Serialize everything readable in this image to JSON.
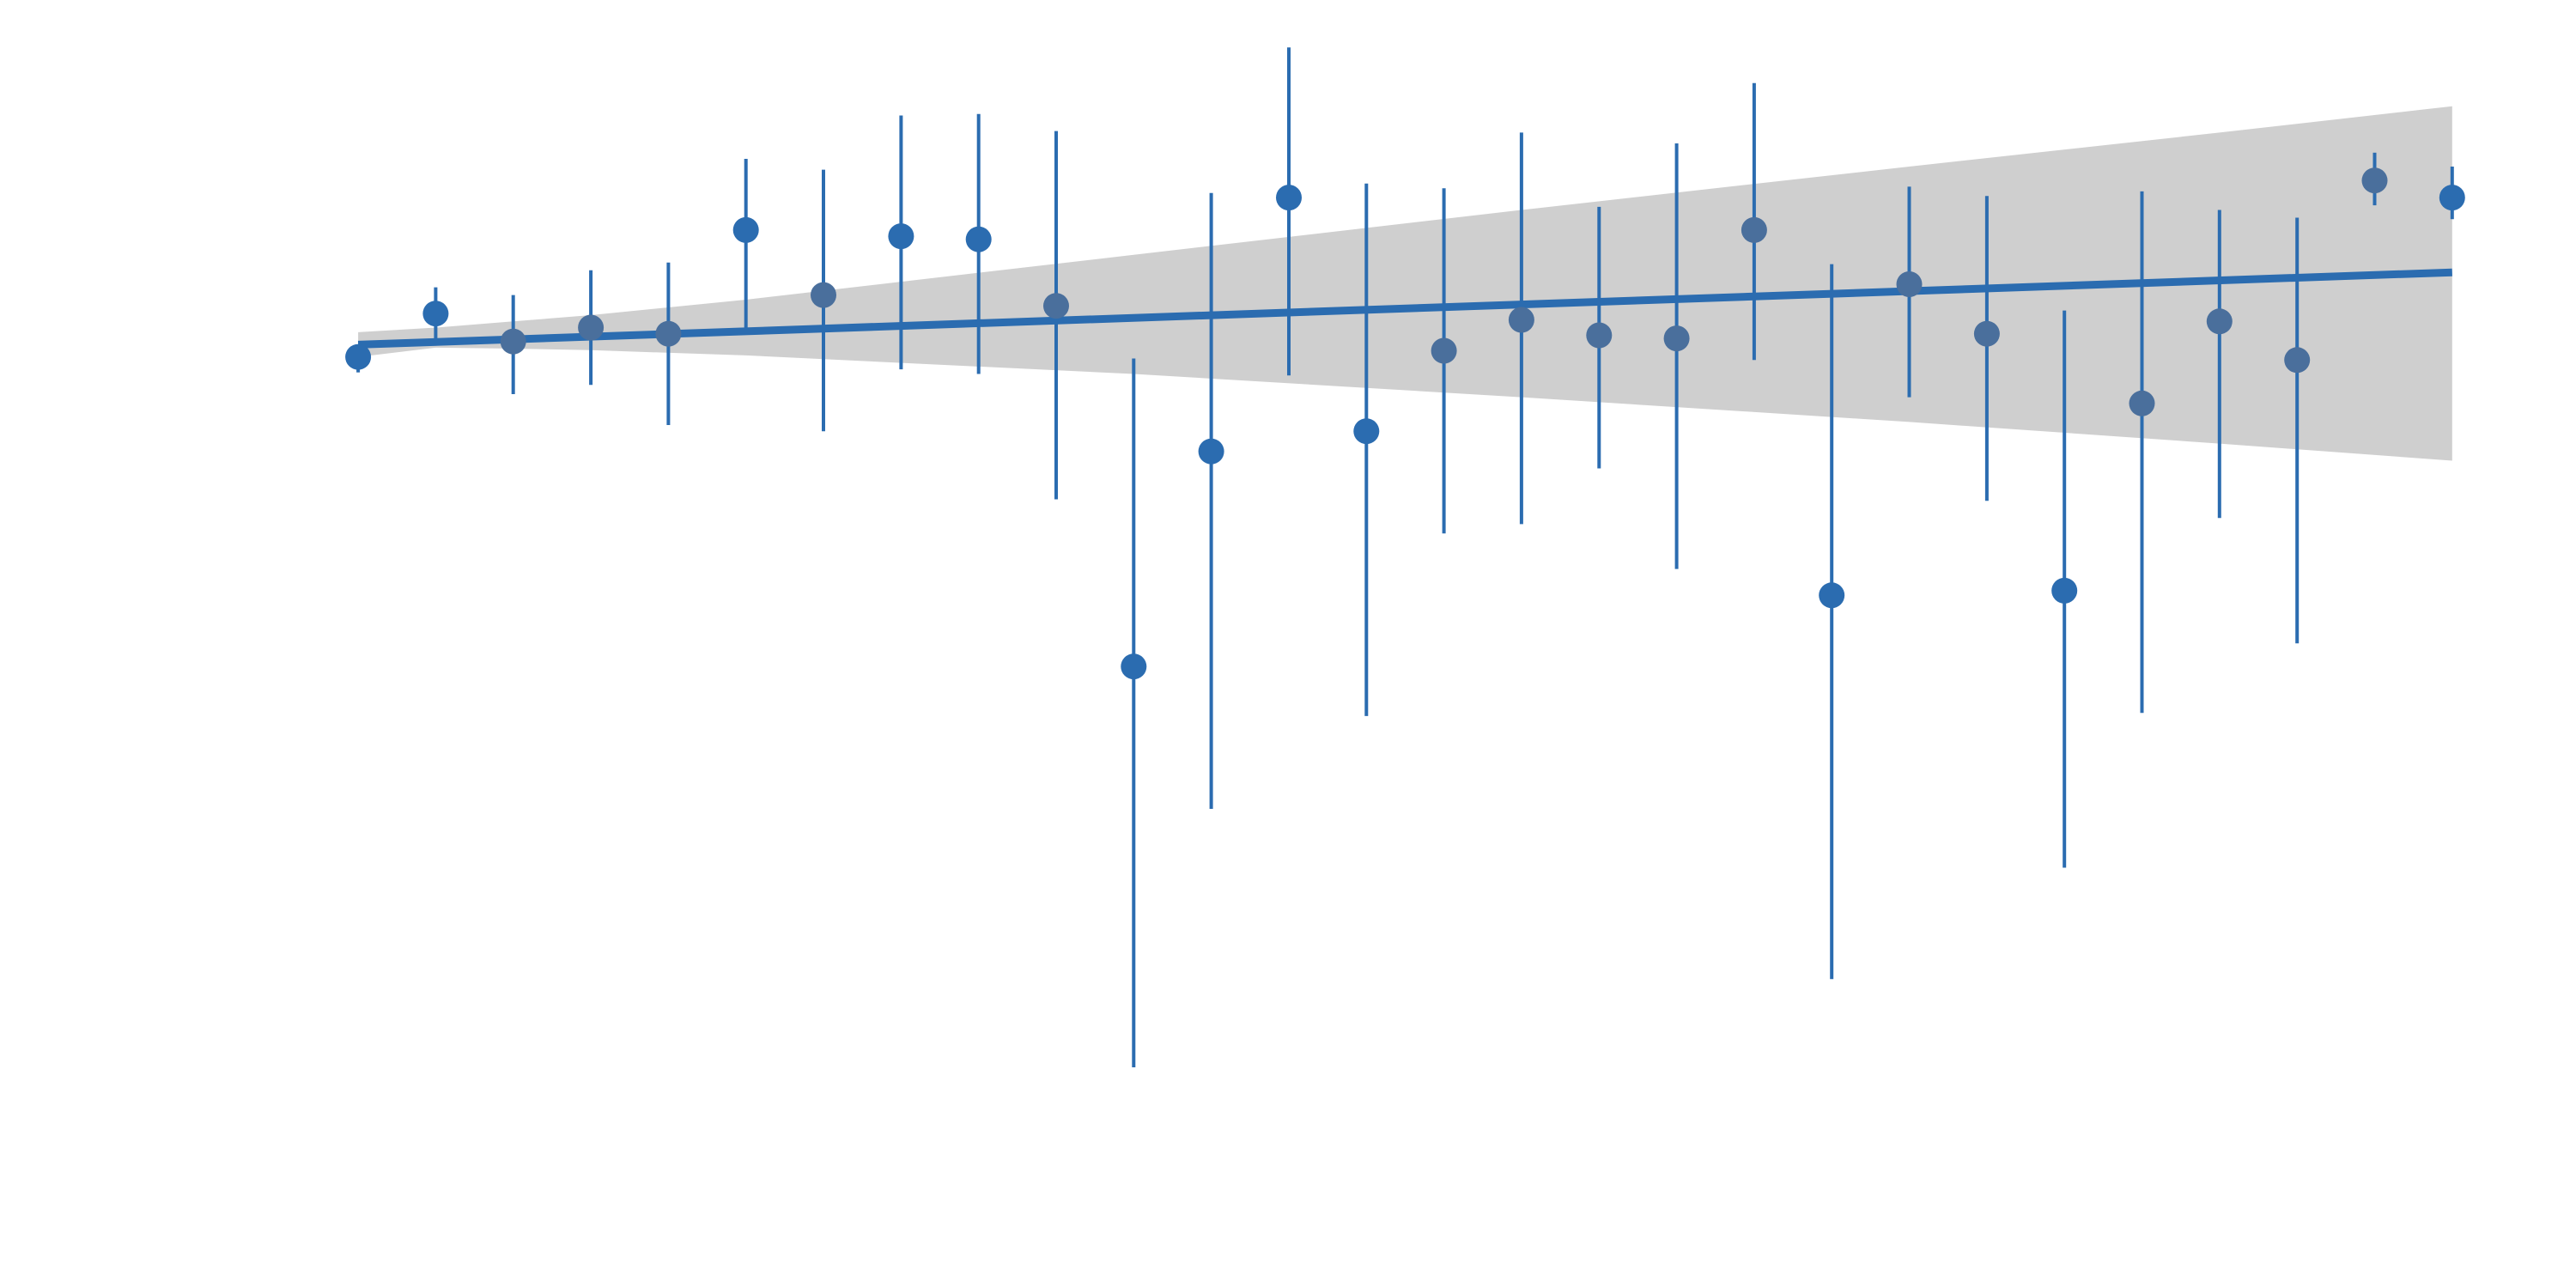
{
  "chart_data": {
    "type": "scatter",
    "title": "",
    "xlabel": "",
    "ylabel": "",
    "grid": false,
    "legend": "none",
    "xlim": [
      -0.3,
      27.6
    ],
    "ylim": [
      -28.26,
      10.3
    ],
    "colors": {
      "point_primary": "#2b6cb0",
      "point_muted": "#4a6f9c",
      "errorbar": "#2b6cb0",
      "trend_line": "#2b6cb0",
      "confidence_band": "#cfcfcf",
      "background": "#ffffff"
    },
    "trend": {
      "x": [
        0,
        27
      ],
      "y": [
        -0.003,
        2.333
      ],
      "band": [
        {
          "x": 0,
          "lower": -0.4,
          "upper": 0.4
        },
        {
          "x": 1,
          "lower": -0.1,
          "upper": 0.55
        },
        {
          "x": 2,
          "lower": -0.13,
          "upper": 0.75
        },
        {
          "x": 3,
          "lower": -0.18,
          "upper": 0.95
        },
        {
          "x": 5,
          "lower": -0.35,
          "upper": 1.45
        },
        {
          "x": 10,
          "lower": -0.95,
          "upper": 2.9
        },
        {
          "x": 15,
          "lower": -1.7,
          "upper": 4.35
        },
        {
          "x": 20,
          "lower": -2.5,
          "upper": 5.75
        },
        {
          "x": 24,
          "lower": -3.2,
          "upper": 6.85
        },
        {
          "x": 27,
          "lower": -3.75,
          "upper": 7.7
        }
      ]
    },
    "series": [
      {
        "points": [
          {
            "x": 0,
            "y": -0.4,
            "lower": -0.9,
            "upper": -0.4,
            "muted": false
          },
          {
            "x": 1,
            "y": 1.0,
            "lower": 0.1,
            "upper": 1.85,
            "muted": false
          },
          {
            "x": 2,
            "y": 0.1,
            "lower": -1.6,
            "upper": 1.6,
            "muted": true
          },
          {
            "x": 3,
            "y": 0.55,
            "lower": -1.3,
            "upper": 2.4,
            "muted": true
          },
          {
            "x": 4,
            "y": 0.35,
            "lower": -2.6,
            "upper": 2.65,
            "muted": true
          },
          {
            "x": 5,
            "y": 3.7,
            "lower": 0.5,
            "upper": 6.0,
            "muted": false
          },
          {
            "x": 6,
            "y": 1.6,
            "lower": -2.8,
            "upper": 5.65,
            "muted": true
          },
          {
            "x": 7,
            "y": 3.5,
            "lower": -0.8,
            "upper": 7.4,
            "muted": false
          },
          {
            "x": 8,
            "y": 3.4,
            "lower": -0.95,
            "upper": 7.45,
            "muted": false
          },
          {
            "x": 9,
            "y": 1.25,
            "lower": -5.0,
            "upper": 6.9,
            "muted": true
          },
          {
            "x": 10,
            "y": -10.4,
            "lower": -23.35,
            "upper": -0.45,
            "muted": false
          },
          {
            "x": 11,
            "y": -3.45,
            "lower": -15.0,
            "upper": 4.9,
            "muted": false
          },
          {
            "x": 12,
            "y": 4.75,
            "lower": -1.0,
            "upper": 9.6,
            "muted": false
          },
          {
            "x": 13,
            "y": -2.8,
            "lower": -12.0,
            "upper": 5.2,
            "muted": false
          },
          {
            "x": 14,
            "y": -0.2,
            "lower": -6.1,
            "upper": 5.05,
            "muted": true
          },
          {
            "x": 15,
            "y": 0.8,
            "lower": -5.8,
            "upper": 6.85,
            "muted": true
          },
          {
            "x": 16,
            "y": 0.3,
            "lower": -4.0,
            "upper": 4.45,
            "muted": true
          },
          {
            "x": 17,
            "y": 0.2,
            "lower": -7.25,
            "upper": 6.5,
            "muted": true
          },
          {
            "x": 18,
            "y": 3.7,
            "lower": -0.5,
            "upper": 8.45,
            "muted": true
          },
          {
            "x": 19,
            "y": -8.1,
            "lower": -20.5,
            "upper": 2.6,
            "muted": false
          },
          {
            "x": 20,
            "y": 1.95,
            "lower": -1.7,
            "upper": 5.1,
            "muted": true
          },
          {
            "x": 21,
            "y": 0.35,
            "lower": -5.05,
            "upper": 4.8,
            "muted": true
          },
          {
            "x": 22,
            "y": -7.95,
            "lower": -16.9,
            "upper": 1.1,
            "muted": false
          },
          {
            "x": 23,
            "y": -1.9,
            "lower": -11.9,
            "upper": 4.95,
            "muted": true
          },
          {
            "x": 24,
            "y": 0.75,
            "lower": -5.6,
            "upper": 4.35,
            "muted": true
          },
          {
            "x": 25,
            "y": -0.5,
            "lower": -9.65,
            "upper": 4.1,
            "muted": true
          },
          {
            "x": 26,
            "y": 5.3,
            "lower": 4.5,
            "upper": 6.2,
            "muted": true
          },
          {
            "x": 27,
            "y": 4.75,
            "lower": 4.05,
            "upper": 5.75,
            "muted": false
          }
        ]
      }
    ]
  }
}
